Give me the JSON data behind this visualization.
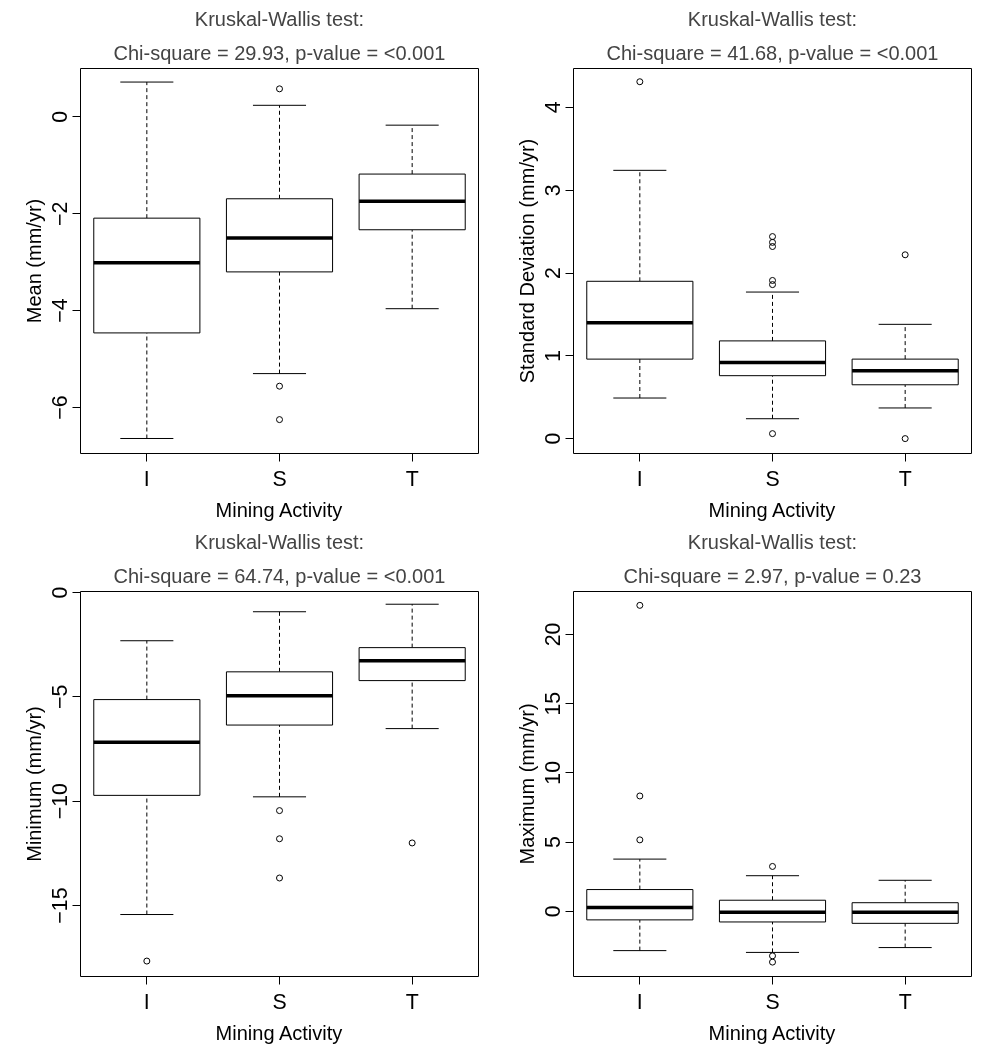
{
  "chart_data": [
    {
      "type": "box",
      "title": "Kruskal-Wallis test:",
      "subtitle": "Chi-square = 29.93, p-value = <0.001",
      "xlabel": "Mining Activity",
      "ylabel": "Mean (mm/yr)",
      "categories": [
        "I",
        "S",
        "T"
      ],
      "ylim": [
        -6.95,
        1.0
      ],
      "yticks": [
        -6,
        -4,
        -2,
        0
      ],
      "grid": false,
      "boxes": [
        {
          "low": -6.64,
          "q1": -4.46,
          "median": -3.01,
          "q3": -2.09,
          "high": 0.72
        },
        {
          "low": -5.3,
          "q1": -3.2,
          "median": -2.5,
          "q3": -1.69,
          "high": 0.24,
          "outliers": [
            0.58,
            -5.56,
            -6.25
          ]
        },
        {
          "low": -3.96,
          "q1": -2.33,
          "median": -1.74,
          "q3": -1.18,
          "high": -0.17
        }
      ]
    },
    {
      "type": "box",
      "title": "Kruskal-Wallis test:",
      "subtitle": "Chi-square = 41.68, p-value = <0.001",
      "xlabel": "Mining Activity",
      "ylabel": "Standard Deviation (mm/yr)",
      "categories": [
        "I",
        "S",
        "T"
      ],
      "ylim": [
        -0.18,
        4.47
      ],
      "yticks": [
        0,
        1,
        2,
        3,
        4
      ],
      "grid": false,
      "boxes": [
        {
          "low": 0.49,
          "q1": 0.96,
          "median": 1.4,
          "q3": 1.9,
          "high": 3.24,
          "outliers": [
            4.31
          ]
        },
        {
          "low": 0.24,
          "q1": 0.76,
          "median": 0.92,
          "q3": 1.18,
          "high": 1.77,
          "outliers": [
            2.44,
            2.37,
            2.32,
            1.91,
            1.86,
            0.06
          ]
        },
        {
          "low": 0.37,
          "q1": 0.65,
          "median": 0.82,
          "q3": 0.96,
          "high": 1.38,
          "outliers": [
            2.22,
            0.0
          ]
        }
      ]
    },
    {
      "type": "box",
      "title": "Kruskal-Wallis test:",
      "subtitle": "Chi-square = 64.74, p-value = <0.001",
      "xlabel": "Mining Activity",
      "ylabel": "Minimum (mm/yr)",
      "categories": [
        "I",
        "S",
        "T"
      ],
      "ylim": [
        -18.4,
        0.05
      ],
      "yticks": [
        -15,
        -10,
        -5,
        0
      ],
      "grid": false,
      "boxes": [
        {
          "low": -15.43,
          "q1": -9.72,
          "median": -7.18,
          "q3": -5.13,
          "high": -2.31,
          "outliers": [
            -17.66
          ]
        },
        {
          "low": -9.79,
          "q1": -6.35,
          "median": -4.95,
          "q3": -3.8,
          "high": -0.92,
          "outliers": [
            -10.45,
            -11.8,
            -13.68
          ]
        },
        {
          "low": -6.52,
          "q1": -4.22,
          "median": -3.27,
          "q3": -2.64,
          "high": -0.56,
          "outliers": [
            -12.0
          ]
        }
      ]
    },
    {
      "type": "box",
      "title": "Kruskal-Wallis test:",
      "subtitle": "Chi-square = 2.97, p-value = 0.23",
      "xlabel": "Mining Activity",
      "ylabel": "Maximum (mm/yr)",
      "categories": [
        "I",
        "S",
        "T"
      ],
      "ylim": [
        -4.71,
        23.1
      ],
      "yticks": [
        0,
        5,
        10,
        15,
        20
      ],
      "grid": false,
      "boxes": [
        {
          "low": -2.84,
          "q1": -0.62,
          "median": 0.27,
          "q3": 1.57,
          "high": 3.77,
          "outliers": [
            22.1,
            8.33,
            5.16
          ]
        },
        {
          "low": -2.97,
          "q1": -0.77,
          "median": -0.07,
          "q3": 0.8,
          "high": 2.57,
          "outliers": [
            3.24,
            -3.22,
            -3.67
          ]
        },
        {
          "low": -2.62,
          "q1": -0.87,
          "median": -0.07,
          "q3": 0.62,
          "high": 2.24
        }
      ]
    }
  ]
}
